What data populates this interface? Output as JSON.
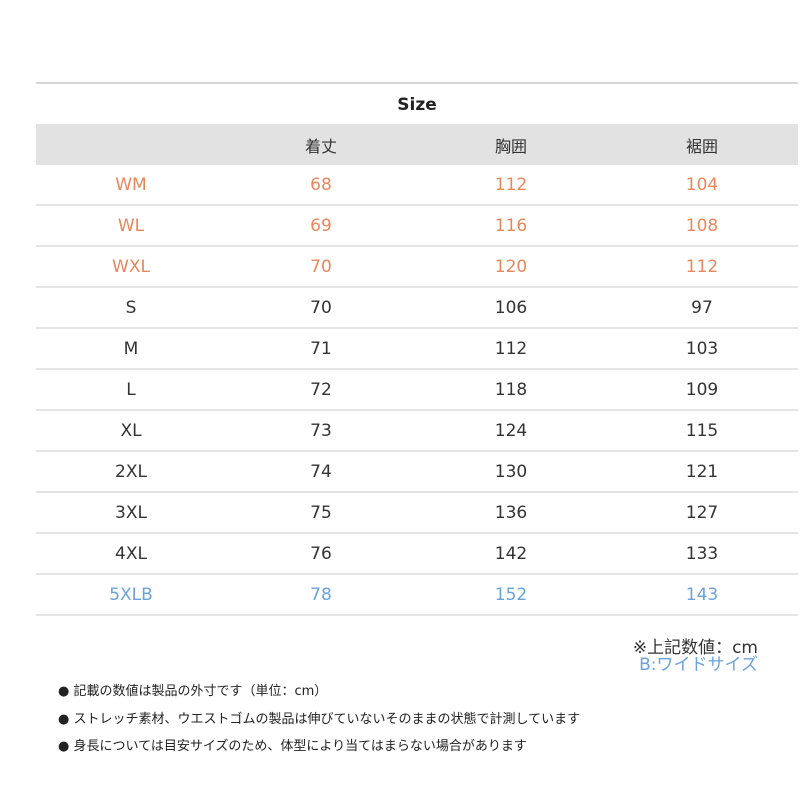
{
  "title": "Size",
  "colors": {
    "orange": "#e8875c",
    "blue": "#6aa3dc",
    "header_bg": "#e2e2e2"
  },
  "columns": [
    "",
    "着丈",
    "胸囲",
    "裾囲"
  ],
  "rows": [
    {
      "size": "WM",
      "values": [
        "68",
        "112",
        "104"
      ],
      "color": "#e8875c"
    },
    {
      "size": "WL",
      "values": [
        "69",
        "116",
        "108"
      ],
      "color": "#e8875c"
    },
    {
      "size": "WXL",
      "values": [
        "70",
        "120",
        "112"
      ],
      "color": "#e8875c"
    },
    {
      "size": "S",
      "values": [
        "70",
        "106",
        "97"
      ],
      "color": "#333333"
    },
    {
      "size": "M",
      "values": [
        "71",
        "112",
        "103"
      ],
      "color": "#333333"
    },
    {
      "size": "L",
      "values": [
        "72",
        "118",
        "109"
      ],
      "color": "#333333"
    },
    {
      "size": "XL",
      "values": [
        "73",
        "124",
        "115"
      ],
      "color": "#333333"
    },
    {
      "size": "2XL",
      "values": [
        "74",
        "130",
        "121"
      ],
      "color": "#333333"
    },
    {
      "size": "3XL",
      "values": [
        "75",
        "136",
        "127"
      ],
      "color": "#333333"
    },
    {
      "size": "4XL",
      "values": [
        "76",
        "142",
        "133"
      ],
      "color": "#333333"
    },
    {
      "size": "5XLB",
      "values": [
        "78",
        "152",
        "143"
      ],
      "color": "#6aa3dc"
    }
  ],
  "unit_note": "※上記数値：cm",
  "wide_note": "B:ワイドサイズ",
  "notes": [
    "● 記載の数値は製品の外寸です（単位：cm）",
    "● ストレッチ素材、ウエストゴムの製品は伸びていないそのままの状態で計測しています",
    "● 身長については目安サイズのため、体型により当てはまらない場合があります"
  ]
}
